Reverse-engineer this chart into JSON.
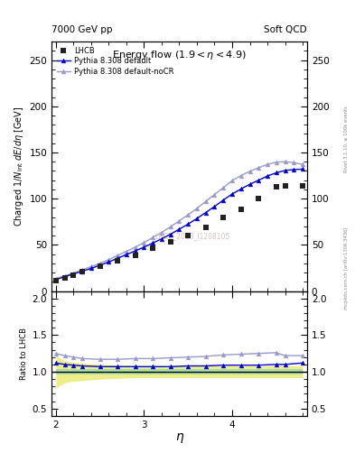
{
  "title_left": "7000 GeV pp",
  "title_right": "Soft QCD",
  "plot_title": "Energy flow (1.9< η <4.9)",
  "xlabel": "η",
  "ylabel_main": "Charged 1/N$_{int}$ dE/dη [GeV]",
  "ylabel_ratio": "Ratio to LHCB",
  "right_label_top": "Rivet 3.1.10, ≥ 100k events",
  "right_label_bottom": "mcplots.cern.ch [arXiv:1306.3436]",
  "watermark": "LHCB_2013_I1208105",
  "lhcb_eta": [
    2.0,
    2.1,
    2.2,
    2.3,
    2.5,
    2.7,
    2.9,
    3.1,
    3.3,
    3.5,
    3.7,
    3.9,
    4.1,
    4.3,
    4.5,
    4.6,
    4.8
  ],
  "lhcb_y": [
    11.5,
    14.5,
    17.5,
    21.0,
    26.5,
    32.5,
    39.0,
    46.5,
    53.0,
    60.5,
    69.0,
    79.5,
    88.0,
    100.0,
    113.0,
    113.5,
    114.0
  ],
  "pythia_default_eta": [
    2.0,
    2.1,
    2.2,
    2.3,
    2.4,
    2.5,
    2.6,
    2.7,
    2.8,
    2.9,
    3.0,
    3.1,
    3.2,
    3.3,
    3.4,
    3.5,
    3.6,
    3.7,
    3.8,
    3.9,
    4.0,
    4.1,
    4.2,
    4.3,
    4.4,
    4.5,
    4.6,
    4.7,
    4.8
  ],
  "pythia_default_y": [
    12.5,
    15.5,
    18.5,
    21.5,
    24.5,
    28.0,
    31.5,
    35.5,
    39.5,
    43.5,
    47.5,
    52.0,
    56.5,
    61.5,
    67.0,
    72.5,
    78.5,
    85.0,
    91.5,
    98.5,
    105.0,
    110.5,
    115.5,
    120.0,
    124.5,
    128.0,
    130.5,
    131.5,
    132.0
  ],
  "pythia_nocr_eta": [
    2.0,
    2.1,
    2.2,
    2.3,
    2.4,
    2.5,
    2.6,
    2.7,
    2.8,
    2.9,
    3.0,
    3.1,
    3.2,
    3.3,
    3.4,
    3.5,
    3.6,
    3.7,
    3.8,
    3.9,
    4.0,
    4.1,
    4.2,
    4.3,
    4.4,
    4.5,
    4.6,
    4.7,
    4.8
  ],
  "pythia_nocr_y": [
    13.5,
    16.5,
    19.5,
    23.0,
    26.5,
    30.0,
    34.0,
    38.5,
    43.0,
    47.5,
    52.5,
    58.0,
    63.5,
    69.5,
    76.0,
    82.5,
    89.5,
    97.0,
    104.5,
    112.0,
    119.5,
    125.0,
    129.5,
    133.5,
    137.0,
    139.5,
    140.0,
    139.0,
    137.0
  ],
  "ratio_default_eta": [
    2.0,
    2.1,
    2.2,
    2.3,
    2.5,
    2.7,
    2.9,
    3.1,
    3.3,
    3.5,
    3.7,
    3.9,
    4.1,
    4.3,
    4.5,
    4.6,
    4.8
  ],
  "ratio_default_y": [
    1.12,
    1.1,
    1.09,
    1.08,
    1.07,
    1.07,
    1.07,
    1.07,
    1.07,
    1.08,
    1.08,
    1.09,
    1.09,
    1.09,
    1.1,
    1.1,
    1.12
  ],
  "ratio_nocr_eta": [
    2.0,
    2.1,
    2.2,
    2.3,
    2.5,
    2.7,
    2.9,
    3.1,
    3.3,
    3.5,
    3.7,
    3.9,
    4.1,
    4.3,
    4.5,
    4.6,
    4.8
  ],
  "ratio_nocr_y": [
    1.25,
    1.22,
    1.2,
    1.18,
    1.17,
    1.17,
    1.18,
    1.18,
    1.19,
    1.2,
    1.21,
    1.23,
    1.24,
    1.25,
    1.26,
    1.22,
    1.22
  ],
  "yellow_band_eta": [
    2.0,
    2.1,
    2.2,
    2.3,
    2.5,
    2.7,
    2.9,
    3.1,
    3.3,
    3.5,
    3.7,
    3.9,
    4.1,
    4.3,
    4.5,
    4.6,
    4.8
  ],
  "yellow_band_lo": [
    0.78,
    0.85,
    0.87,
    0.88,
    0.9,
    0.91,
    0.92,
    0.92,
    0.92,
    0.92,
    0.92,
    0.92,
    0.92,
    0.92,
    0.92,
    0.92,
    0.92
  ],
  "yellow_band_hi": [
    1.22,
    1.15,
    1.13,
    1.12,
    1.1,
    1.09,
    1.08,
    1.08,
    1.08,
    1.08,
    1.08,
    1.08,
    1.08,
    1.08,
    1.08,
    1.08,
    1.08
  ],
  "green_band_lo": 0.965,
  "green_band_hi": 1.035,
  "lhcb_color": "#222222",
  "pythia_default_color": "#0000cc",
  "pythia_nocr_color": "#9999cc",
  "green_color": "#aaddaa",
  "yellow_color": "#eeee88",
  "xlim": [
    1.95,
    4.85
  ],
  "ylim_main": [
    0,
    270
  ],
  "ylim_ratio": [
    0.4,
    2.1
  ],
  "yticks_main": [
    0,
    50,
    100,
    150,
    200,
    250
  ],
  "yticks_ratio": [
    0.5,
    1.0,
    1.5,
    2.0
  ],
  "xticks": [
    2,
    3,
    4
  ]
}
